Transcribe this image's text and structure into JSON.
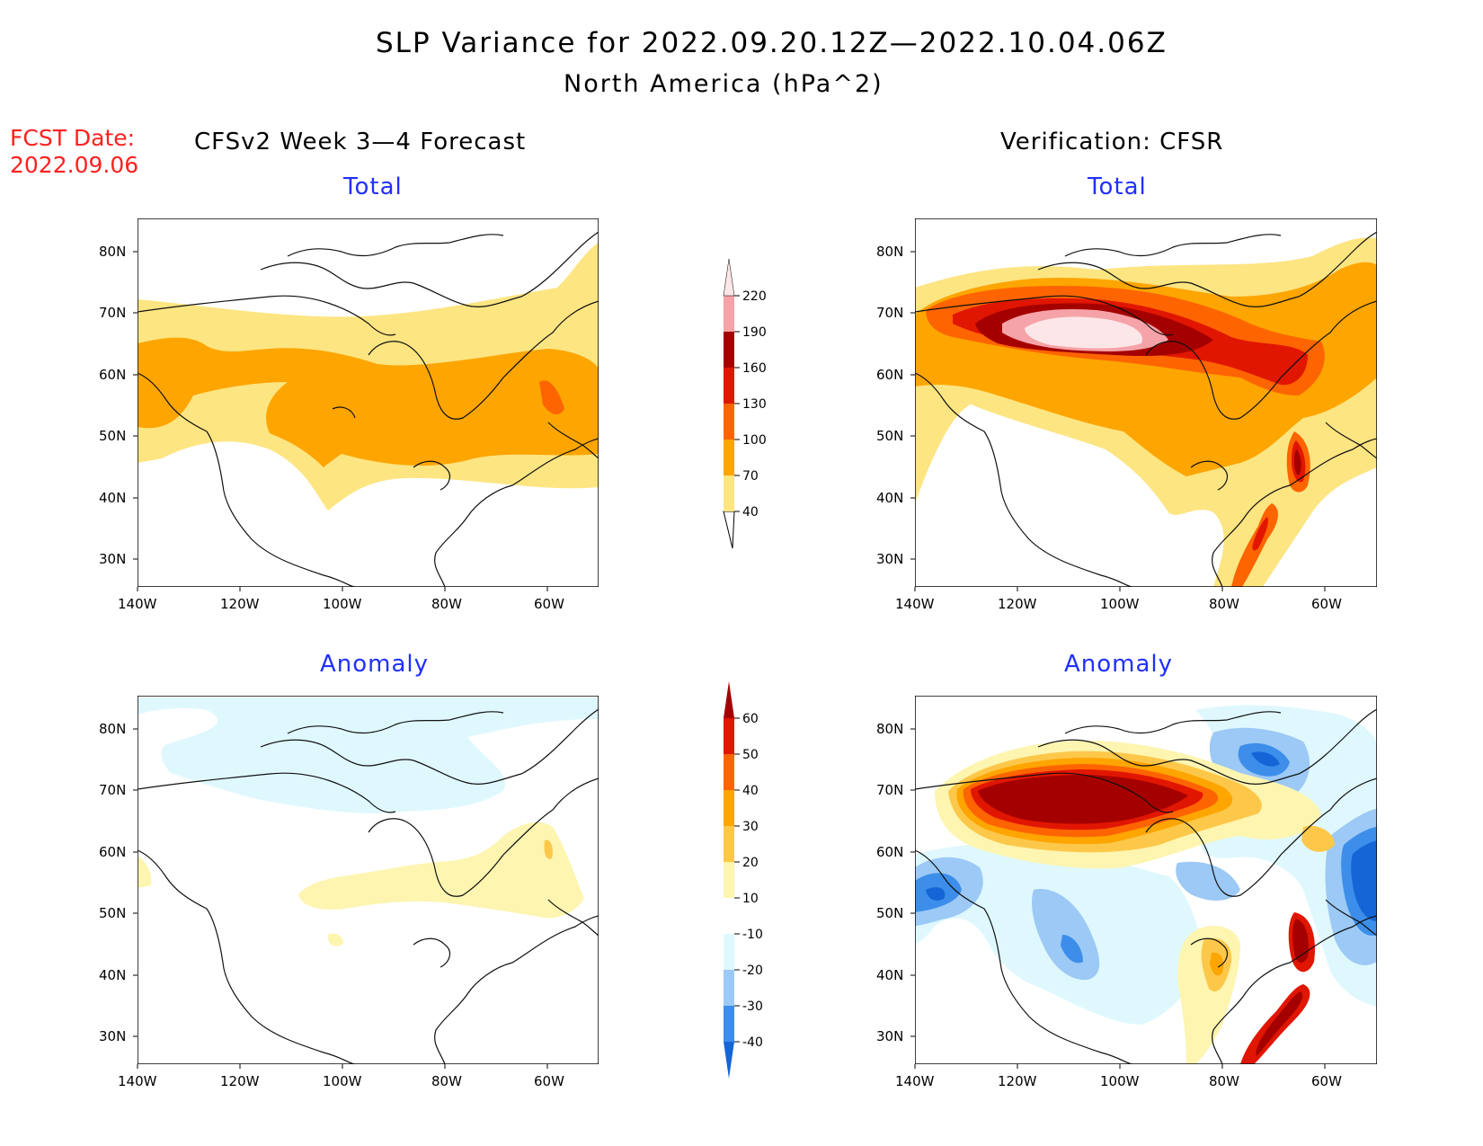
{
  "title": "SLP Variance for 2022.09.20.12Z—2022.10.04.06Z",
  "subtitle": "North America (hPa^2)",
  "fcst_date_label": "FCST Date:",
  "fcst_date_value": "2022.09.06",
  "left_heading": "CFSv2 Week 3—4 Forecast",
  "right_heading": "Verification: CFSR",
  "panels": {
    "fc_total": {
      "title": "Total"
    },
    "fc_anom": {
      "title": "Anomaly"
    },
    "vf_total": {
      "title": "Total"
    },
    "vf_anom": {
      "title": "Anomaly"
    }
  },
  "lat_labels": [
    "30N",
    "40N",
    "50N",
    "60N",
    "70N",
    "80N"
  ],
  "lon_labels": [
    "140W",
    "120W",
    "100W",
    "80W",
    "60W"
  ],
  "colorbar_total": {
    "levels": [
      "40",
      "70",
      "100",
      "130",
      "160",
      "190",
      "220"
    ],
    "colors": [
      "#fde582",
      "#fea500",
      "#fe6400",
      "#e11600",
      "#a50000",
      "#f5a3a8",
      "#fde6e8"
    ]
  },
  "colorbar_anom": {
    "levels": [
      "-40",
      "-30",
      "-20",
      "-10",
      "10",
      "20",
      "30",
      "40",
      "50",
      "60"
    ],
    "colors": [
      "#1565d6",
      "#3d8eea",
      "#9cc9f5",
      "#dff8fe",
      "#ffffff",
      "#fdf5b0",
      "#fdc84a",
      "#fea500",
      "#fe6400",
      "#e11600",
      "#a50000"
    ]
  },
  "colors": {
    "title_red": "#ff2020",
    "panel_title_blue": "#2030ff"
  }
}
